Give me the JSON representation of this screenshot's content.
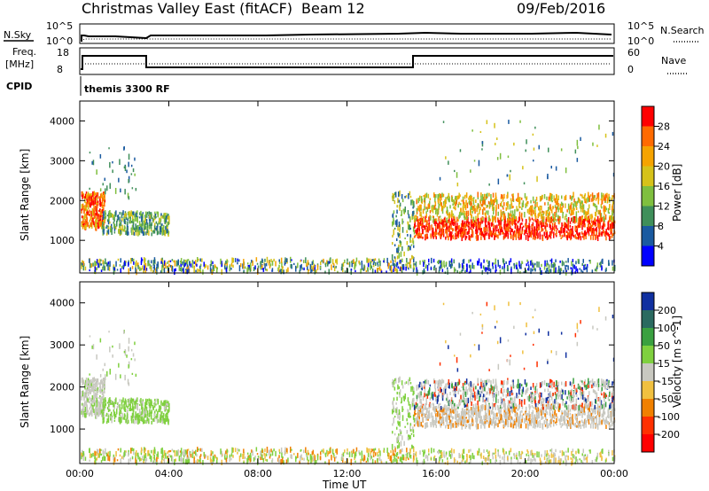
{
  "header": {
    "title": "Christmas Valley East (fitACF)",
    "beam": "Beam 12",
    "date": "09/Feb/2016"
  },
  "top_panels": {
    "nsky_label": "N.Sky",
    "nsearch_label": "N.Search",
    "nsky_ticks": [
      "10^5",
      "10^0"
    ],
    "nsearch_ticks": [
      "10^5",
      "10^0"
    ],
    "freq_label_1": "Freq.",
    "freq_label_2": "[MHz]",
    "freq_ticks": [
      "18",
      "8"
    ],
    "nave_label": "Nave",
    "nave_ticks": [
      "60",
      "0"
    ],
    "cpid_label": "CPID",
    "cpid_text": "themis 3300 RF"
  },
  "chart_data": [
    {
      "type": "heatmap",
      "name": "power",
      "ylabel": "Slant Range [km]",
      "yticks": [
        "4000",
        "3000",
        "2000",
        "1000"
      ],
      "ylim": [
        180,
        4500
      ],
      "colorbar_label": "Power [dB]",
      "colorbar_ticks": [
        "28",
        "24",
        "20",
        "16",
        "12",
        "8",
        "4"
      ],
      "colorbar_colors": [
        "#ff0000",
        "#ff6a00",
        "#f5a300",
        "#d6c21a",
        "#7fbf3f",
        "#3f8f5a",
        "#1a5aa0",
        "#0000ff"
      ]
    },
    {
      "type": "heatmap",
      "name": "velocity",
      "ylabel": "Slant Range [km]",
      "yticks": [
        "4000",
        "3000",
        "2000",
        "1000"
      ],
      "ylim": [
        180,
        4500
      ],
      "colorbar_label": "Velocity [m s^-1]",
      "colorbar_ticks": [
        "200",
        "100",
        "50",
        "15",
        "-15",
        "-50",
        "-100",
        "-200"
      ],
      "colorbar_colors": [
        "#1030a0",
        "#2a6a60",
        "#3aa040",
        "#7fd03f",
        "#c8c8c0",
        "#f0c040",
        "#f08000",
        "#ff3000",
        "#ff0000"
      ],
      "xlabel": "Time UT",
      "xticks": [
        "00:00",
        "04:00",
        "08:00",
        "12:00",
        "16:00",
        "20:00",
        "00:00"
      ]
    }
  ]
}
